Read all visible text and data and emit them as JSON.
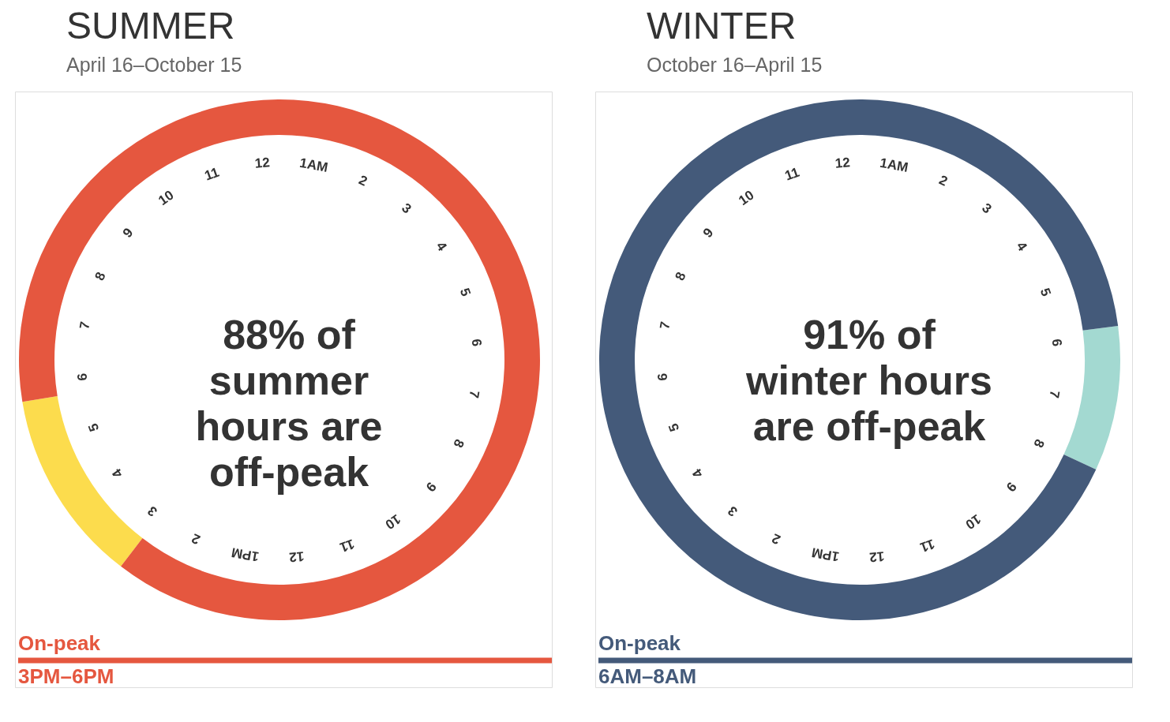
{
  "chart_data": [
    {
      "type": "donut",
      "title": "SUMMER",
      "subtitle": "April 16–October 15",
      "categories": [
        null,
        null
      ],
      "values": [
        12,
        88
      ],
      "colors": [
        "#fcdc4d",
        "#e5573f"
      ],
      "annotations": [
        "12",
        "1AM",
        "2",
        "3",
        "4",
        "5",
        "6",
        "7",
        "8",
        "9",
        "10",
        "11",
        "12",
        "1PM",
        "2",
        "3",
        "4",
        "5",
        "6",
        "7",
        "8",
        "9",
        "10",
        "11",
        "88% of\nsummer\nhours are\noff-peak",
        "On-peak",
        "3PM–6PM"
      ]
    },
    {
      "type": "donut",
      "title": "WINTER",
      "subtitle": "October 16–April 15",
      "categories": [
        null,
        null
      ],
      "values": [
        9,
        91
      ],
      "colors": [
        "#a3d9d1",
        "#445a7a"
      ],
      "annotations": [
        "12",
        "1AM",
        "2",
        "3",
        "4",
        "5",
        "6",
        "7",
        "8",
        "9",
        "10",
        "11",
        "12",
        "1PM",
        "2",
        "3",
        "4",
        "5",
        "6",
        "7",
        "8",
        "9",
        "10",
        "11",
        "91% of\nwinter hours\nare off-peak",
        "On-peak",
        "6AM–8AM"
      ]
    }
  ]
}
